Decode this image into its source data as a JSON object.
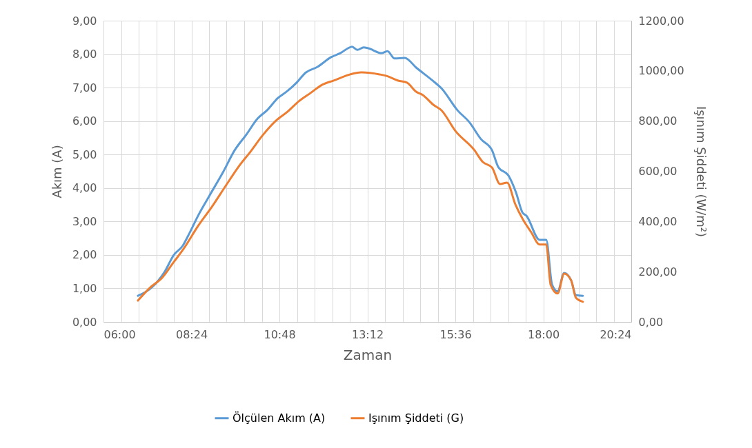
{
  "chart_data": {
    "type": "line",
    "xlabel": "Zaman",
    "ylabel": "Akım (A)",
    "y2label": "Işınım Şiddeti (W/m²)",
    "legend": "bottom",
    "grid": true,
    "xlim": [
      6,
      20.4
    ],
    "xticks": [
      {
        "value": 6,
        "label": "06:00"
      },
      {
        "value": 6.48,
        "label": null
      },
      {
        "value": 6.96,
        "label": null
      },
      {
        "value": 7.44,
        "label": null
      },
      {
        "value": 7.92,
        "label": null
      },
      {
        "value": 8.4,
        "label": "08:24"
      },
      {
        "value": 8.88,
        "label": null
      },
      {
        "value": 9.36,
        "label": null
      },
      {
        "value": 9.84,
        "label": null
      },
      {
        "value": 10.32,
        "label": null
      },
      {
        "value": 10.8,
        "label": "10:48"
      },
      {
        "value": 11.28,
        "label": null
      },
      {
        "value": 11.76,
        "label": null
      },
      {
        "value": 12.24,
        "label": null
      },
      {
        "value": 12.72,
        "label": null
      },
      {
        "value": 13.2,
        "label": "13:12"
      },
      {
        "value": 13.68,
        "label": null
      },
      {
        "value": 14.16,
        "label": null
      },
      {
        "value": 14.64,
        "label": null
      },
      {
        "value": 15.12,
        "label": null
      },
      {
        "value": 15.6,
        "label": "15:36"
      },
      {
        "value": 16.08,
        "label": null
      },
      {
        "value": 16.56,
        "label": null
      },
      {
        "value": 17.04,
        "label": null
      },
      {
        "value": 17.52,
        "label": null
      },
      {
        "value": 18,
        "label": "18:00"
      },
      {
        "value": 18.48,
        "label": null
      },
      {
        "value": 18.96,
        "label": null
      },
      {
        "value": 19.44,
        "label": null
      },
      {
        "value": 19.92,
        "label": null
      },
      {
        "value": 20.4,
        "label": "20:24"
      }
    ],
    "ylim": [
      0,
      9
    ],
    "yticks": [
      {
        "value": 0,
        "label": "0,00"
      },
      {
        "value": 1,
        "label": "1,00"
      },
      {
        "value": 2,
        "label": "2,00"
      },
      {
        "value": 3,
        "label": "3,00"
      },
      {
        "value": 4,
        "label": "4,00"
      },
      {
        "value": 5,
        "label": "5,00"
      },
      {
        "value": 6,
        "label": "6,00"
      },
      {
        "value": 7,
        "label": "7,00"
      },
      {
        "value": 8,
        "label": "8,00"
      },
      {
        "value": 9,
        "label": "9,00"
      }
    ],
    "y2lim": [
      0,
      1200
    ],
    "y2ticks": [
      {
        "value": 0,
        "label": "0,00"
      },
      {
        "value": 200,
        "label": "200,00"
      },
      {
        "value": 400,
        "label": "400,00"
      },
      {
        "value": 600,
        "label": "600,00"
      },
      {
        "value": 800,
        "label": "800,00"
      },
      {
        "value": 1000,
        "label": "1000,00"
      },
      {
        "value": 1200,
        "label": "1200,00"
      }
    ],
    "series": [
      {
        "name": "Ölçülen Akım (A)",
        "color": "#5b9bd5",
        "x": [
          6.94,
          7.32,
          7.66,
          7.92,
          8.16,
          8.35,
          8.58,
          8.88,
          9.26,
          9.58,
          9.9,
          10.2,
          10.46,
          10.76,
          11.02,
          11.27,
          11.52,
          11.84,
          12.21,
          12.46,
          12.78,
          12.93,
          13.1,
          13.21,
          13.59,
          13.75,
          13.94,
          14.22,
          14.53,
          14.98,
          15.22,
          15.66,
          15.98,
          16.3,
          16.6,
          16.77,
          17.05,
          17.26,
          17.43,
          17.54,
          17.9,
          18.08,
          18.24,
          18.39,
          18.57,
          18.76,
          18.89,
          19.08
        ],
        "values": [
          0.78,
          1.03,
          1.48,
          2.0,
          2.27,
          2.66,
          3.17,
          3.75,
          4.47,
          5.13,
          5.6,
          6.07,
          6.32,
          6.69,
          6.9,
          7.15,
          7.45,
          7.62,
          7.91,
          8.03,
          8.22,
          8.13,
          8.2,
          8.18,
          8.03,
          8.09,
          7.87,
          7.89,
          7.6,
          7.21,
          6.98,
          6.32,
          5.97,
          5.46,
          5.13,
          4.63,
          4.37,
          3.85,
          3.27,
          3.17,
          2.45,
          2.45,
          1.11,
          0.91,
          1.46,
          1.24,
          0.8,
          0.78
        ]
      },
      {
        "name": "Işınım Şiddeti (G)",
        "color": "#ed7d31",
        "axis": "y2",
        "x": [
          6.94,
          7.26,
          7.6,
          7.88,
          8.2,
          8.58,
          8.96,
          9.33,
          9.71,
          10.01,
          10.33,
          10.71,
          11.02,
          11.33,
          11.65,
          11.97,
          12.27,
          12.78,
          13.02,
          13.06,
          13.53,
          13.72,
          14.04,
          14.28,
          14.53,
          14.72,
          15.0,
          15.22,
          15.6,
          16.11,
          16.35,
          16.6,
          16.82,
          17.01,
          17.24,
          17.44,
          17.67,
          17.9,
          18.08,
          18.2,
          18.39,
          18.57,
          18.76,
          18.89,
          19.08
        ],
        "values": [
          85,
          135,
          176,
          231,
          294,
          382,
          459,
          541,
          623,
          678,
          741,
          802,
          837,
          879,
          912,
          945,
          961,
          988,
          994,
          994,
          986,
          980,
          961,
          953,
          917,
          903,
          865,
          843,
          761,
          686,
          637,
          615,
          549,
          555,
          467,
          409,
          357,
          308,
          308,
          148,
          113,
          192,
          165,
          96,
          80
        ]
      }
    ]
  }
}
